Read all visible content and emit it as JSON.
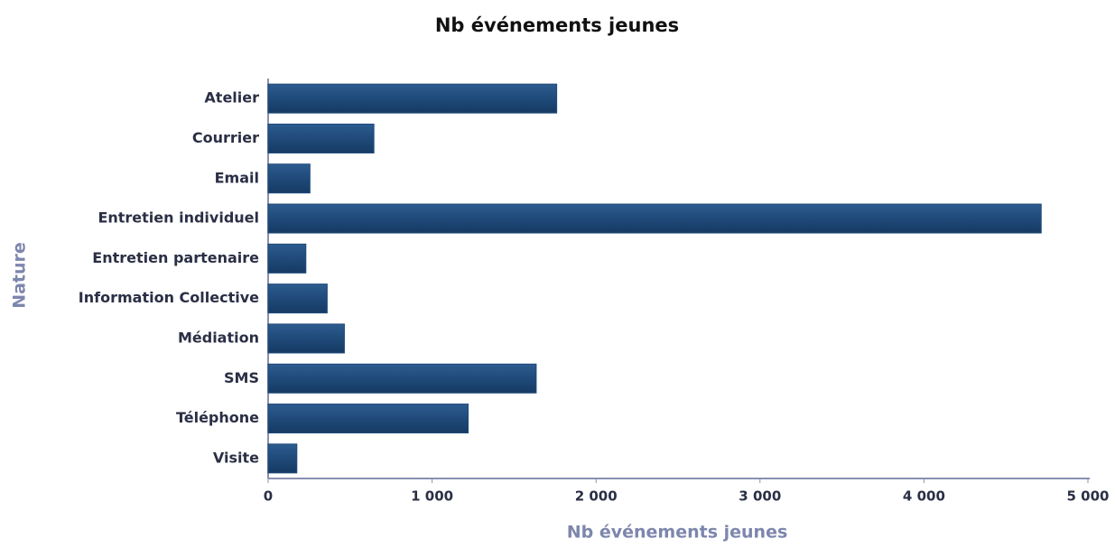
{
  "chart_data": {
    "type": "barh",
    "title": "Nb événements jeunes",
    "xlabel": "Nb événements jeunes",
    "ylabel": "Nature",
    "categories": [
      "Atelier",
      "Courrier",
      "Email",
      "Entretien individuel",
      "Entretien partenaire",
      "Information Collective",
      "Médiation",
      "SMS",
      "Téléphone",
      "Visite"
    ],
    "values": [
      1760,
      645,
      255,
      4715,
      230,
      360,
      465,
      1635,
      1220,
      175
    ],
    "color": "#1f4a7a",
    "xlim": [
      0,
      5000
    ],
    "xticks": [
      0,
      {
        "value": 1000,
        "label": "1 000"
      },
      {
        "value": 2000,
        "label": "2 000"
      },
      {
        "value": 3000,
        "label": "3 000"
      },
      {
        "value": 4000,
        "label": "4 000"
      },
      {
        "value": 5000,
        "label": "5 000"
      }
    ]
  }
}
